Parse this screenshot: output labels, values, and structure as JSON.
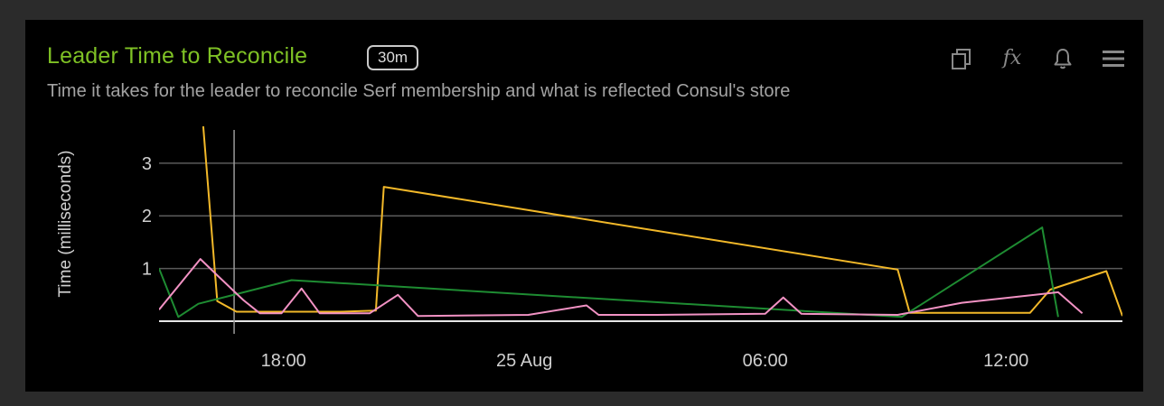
{
  "panel": {
    "title": "Leader Time to Reconcile",
    "range_badge": "30m",
    "subtitle": "Time it takes for the leader to reconcile Serf membership and what is reflected Consul's store",
    "toolbar": {
      "icons": [
        "copy-icon",
        "function-icon",
        "bell-icon",
        "menu-icon"
      ],
      "function_glyph": "fx"
    }
  },
  "colors": {
    "title": "#7fc225",
    "gridline": "#5a5a5a",
    "axis_text": "#cfcfcf",
    "crosshair": "#9a9a9a"
  },
  "chart_data": {
    "type": "line",
    "ylabel": "Time (milliseconds)",
    "xlabel": "",
    "ylim": [
      0,
      3.7
    ],
    "y_ticks": [
      1,
      2,
      3
    ],
    "x_ticks": [
      {
        "hours": 18,
        "label": "18:00"
      },
      {
        "hours": 24,
        "label": "25 Aug"
      },
      {
        "hours": 30,
        "label": "06:00"
      },
      {
        "hours": 36,
        "label": "12:00"
      }
    ],
    "xlim_hours": [
      14.9,
      38.9
    ],
    "crosshair_hours": 16.77,
    "grid": true,
    "legend": "none",
    "series": [
      {
        "color": "#f2b829",
        "points": [
          [
            16,
            3.7
          ],
          [
            16.35,
            0.38
          ],
          [
            16.83,
            0.18
          ],
          [
            17.41,
            0.18
          ],
          [
            19.4,
            0.18
          ],
          [
            20.3,
            0.2
          ],
          [
            20.5,
            2.55
          ],
          [
            33.3,
            0.98
          ],
          [
            33.6,
            0.16
          ],
          [
            35.5,
            0.16
          ],
          [
            36.6,
            0.16
          ],
          [
            37.1,
            0.6
          ],
          [
            38.5,
            0.95
          ],
          [
            38.9,
            0.1
          ]
        ]
      },
      {
        "color": "#1e8c32",
        "points": [
          [
            14.9,
            1.0
          ],
          [
            15.38,
            0.08
          ],
          [
            15.88,
            0.33
          ],
          [
            18.2,
            0.78
          ],
          [
            33.4,
            0.08
          ],
          [
            36.9,
            1.78
          ],
          [
            37.3,
            0.08
          ]
        ]
      },
      {
        "color": "#f292c4",
        "points": [
          [
            14.9,
            0.22
          ],
          [
            15.93,
            1.18
          ],
          [
            16.38,
            0.85
          ],
          [
            17.0,
            0.4
          ],
          [
            17.41,
            0.15
          ],
          [
            17.95,
            0.15
          ],
          [
            18.45,
            0.62
          ],
          [
            18.9,
            0.15
          ],
          [
            20.15,
            0.15
          ],
          [
            20.85,
            0.5
          ],
          [
            21.35,
            0.1
          ],
          [
            24.1,
            0.12
          ],
          [
            25.55,
            0.3
          ],
          [
            25.85,
            0.12
          ],
          [
            27.3,
            0.12
          ],
          [
            30.0,
            0.14
          ],
          [
            30.45,
            0.45
          ],
          [
            30.9,
            0.14
          ],
          [
            33.3,
            0.12
          ],
          [
            34.9,
            0.35
          ],
          [
            37.3,
            0.55
          ],
          [
            37.9,
            0.15
          ]
        ]
      }
    ]
  }
}
